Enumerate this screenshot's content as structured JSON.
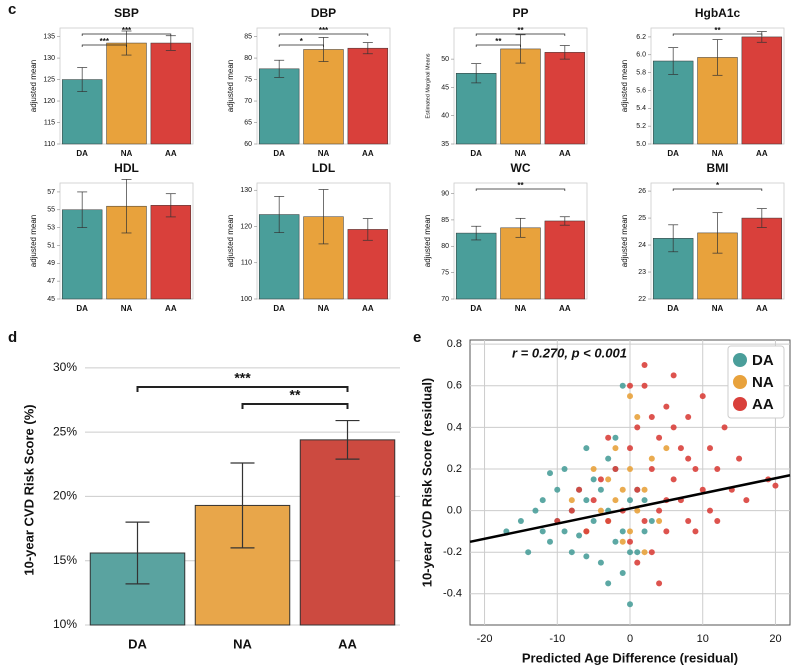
{
  "chart_data": [
    {
      "type": "bar",
      "panel": "c",
      "title": "SBP",
      "y_label": "adjusted mean",
      "categories": [
        "DA",
        "NA",
        "AA"
      ],
      "values": [
        125,
        133.5,
        133.5
      ],
      "errors": [
        2.8,
        2.8,
        1.7
      ],
      "colors": [
        "#4a9e9a",
        "#e8a23c",
        "#d9403b"
      ],
      "ylim": [
        110,
        137
      ],
      "yticks": [
        110,
        115,
        120,
        125,
        130,
        135
      ],
      "grid": false,
      "comparisons": [
        {
          "between": [
            "DA",
            "AA"
          ],
          "label": "***"
        },
        {
          "between": [
            "DA",
            "NA"
          ],
          "label": "***"
        }
      ]
    },
    {
      "type": "bar",
      "title": "DBP",
      "y_label": "adjusted mean",
      "categories": [
        "DA",
        "NA",
        "AA"
      ],
      "values": [
        77.5,
        82,
        82.3
      ],
      "errors": [
        2,
        2.8,
        1.3
      ],
      "colors": [
        "#4a9e9a",
        "#e8a23c",
        "#d9403b"
      ],
      "ylim": [
        60,
        87
      ],
      "yticks": [
        60,
        65,
        70,
        75,
        80,
        85
      ],
      "grid": false,
      "comparisons": [
        {
          "between": [
            "DA",
            "AA"
          ],
          "label": "***"
        },
        {
          "between": [
            "DA",
            "NA"
          ],
          "label": "*"
        }
      ]
    },
    {
      "type": "bar",
      "title": "PP",
      "y_label": "Estimated Marginal Means",
      "categories": [
        "DA",
        "NA",
        "AA"
      ],
      "values": [
        47.5,
        51.8,
        51.2
      ],
      "errors": [
        1.7,
        2.5,
        1.2
      ],
      "colors": [
        "#4a9e9a",
        "#e8a23c",
        "#d9403b"
      ],
      "ylim": [
        35,
        55.5
      ],
      "yticks": [
        35,
        40,
        45,
        50
      ],
      "grid": false,
      "comparisons": [
        {
          "between": [
            "DA",
            "AA"
          ],
          "label": "**"
        },
        {
          "between": [
            "DA",
            "NA"
          ],
          "label": "**"
        }
      ]
    },
    {
      "type": "bar",
      "title": "HgbA1c",
      "y_label": "adjusted mean",
      "categories": [
        "DA",
        "NA",
        "AA"
      ],
      "values": [
        5.93,
        5.97,
        6.2
      ],
      "errors": [
        0.15,
        0.2,
        0.06
      ],
      "colors": [
        "#4a9e9a",
        "#e8a23c",
        "#d9403b"
      ],
      "ylim": [
        5,
        6.3
      ],
      "yticks": [
        {
          "value": 5,
          "label": "5.0"
        },
        5.2,
        5.4,
        5.6,
        5.8,
        {
          "value": 6,
          "label": "6.0"
        },
        6.2
      ],
      "grid": false,
      "comparisons": [
        {
          "between": [
            "DA",
            "AA"
          ],
          "label": "**"
        }
      ]
    },
    {
      "type": "bar",
      "title": "HDL",
      "y_label": "adjusted mean",
      "categories": [
        "DA",
        "NA",
        "AA"
      ],
      "values": [
        55,
        55.4,
        55.5
      ],
      "errors": [
        2,
        3,
        1.3
      ],
      "colors": [
        "#4a9e9a",
        "#e8a23c",
        "#d9403b"
      ],
      "ylim": [
        45,
        58
      ],
      "yticks": [
        45,
        47,
        49,
        51,
        53,
        55,
        57
      ],
      "grid": false,
      "comparisons": []
    },
    {
      "type": "bar",
      "title": "LDL",
      "y_label": "adjusted mean",
      "categories": [
        "DA",
        "NA",
        "AA"
      ],
      "values": [
        123.3,
        122.7,
        119.2
      ],
      "errors": [
        5,
        7.5,
        3
      ],
      "colors": [
        "#4a9e9a",
        "#e8a23c",
        "#d9403b"
      ],
      "ylim": [
        100,
        132
      ],
      "yticks": [
        100,
        110,
        120,
        130
      ],
      "grid": false,
      "comparisons": []
    },
    {
      "type": "bar",
      "title": "WC",
      "y_label": "adjusted mean",
      "categories": [
        "DA",
        "NA",
        "AA"
      ],
      "values": [
        82.5,
        83.5,
        84.8
      ],
      "errors": [
        1.3,
        1.8,
        0.8
      ],
      "colors": [
        "#4a9e9a",
        "#e8a23c",
        "#d9403b"
      ],
      "ylim": [
        70,
        92
      ],
      "yticks": [
        70,
        75,
        80,
        85,
        90
      ],
      "grid": false,
      "comparisons": [
        {
          "between": [
            "DA",
            "AA"
          ],
          "label": "**"
        }
      ]
    },
    {
      "type": "bar",
      "title": "BMI",
      "y_label": "adjusted mean",
      "categories": [
        "DA",
        "NA",
        "AA"
      ],
      "values": [
        24.25,
        24.45,
        25
      ],
      "errors": [
        0.5,
        0.75,
        0.35
      ],
      "colors": [
        "#4a9e9a",
        "#e8a23c",
        "#d9403b"
      ],
      "ylim": [
        22,
        26.3
      ],
      "yticks": [
        22,
        23,
        24,
        25,
        26
      ],
      "grid": false,
      "comparisons": [
        {
          "between": [
            "DA",
            "AA"
          ],
          "label": "*"
        }
      ]
    },
    {
      "type": "bar",
      "panel": "d",
      "y_label": "10-year CVD Risk Score (%)",
      "categories": [
        "DA",
        "NA",
        "AA"
      ],
      "values": [
        15.6,
        19.3,
        24.4
      ],
      "errors": [
        2.4,
        3.3,
        1.5
      ],
      "colors": [
        "#5aa3a0",
        "#e8a64a",
        "#cc4a40"
      ],
      "ylim": [
        10,
        31
      ],
      "yticks": [
        {
          "value": 10,
          "label": "10%"
        },
        {
          "value": 15,
          "label": "15%"
        },
        {
          "value": 20,
          "label": "20%"
        },
        {
          "value": 25,
          "label": "25%"
        },
        {
          "value": 30,
          "label": "30%"
        }
      ],
      "grid": true,
      "comparisons": [
        {
          "between": [
            "DA",
            "AA"
          ],
          "label": "***"
        },
        {
          "between": [
            "NA",
            "AA"
          ],
          "label": "**"
        }
      ]
    },
    {
      "type": "scatter",
      "panel": "e",
      "annotation": "r = 0.270, p < 0.001",
      "x_label": "Predicted Age Difference (residual)",
      "y_label": "10-year CVD Risk Score (residual)",
      "xlim": [
        -22,
        22
      ],
      "ylim": [
        -0.55,
        0.82
      ],
      "xticks": [
        -20,
        -10,
        0,
        10,
        20
      ],
      "yticks": [
        -0.4,
        -0.2,
        {
          "value": 0,
          "label": "0.0"
        },
        0.2,
        0.4,
        0.6,
        0.8
      ],
      "grid": true,
      "legend": "top-right",
      "series": [
        {
          "name": "DA",
          "color": "#4a9e9a",
          "x": [
            -17,
            -15,
            -14,
            -13,
            -12,
            -12,
            -11,
            -10,
            -10,
            -9,
            -9,
            -8,
            -8,
            -7,
            -7,
            -6,
            -6,
            -5,
            -5,
            -4,
            -4,
            -3,
            -3,
            -2,
            -2,
            -1,
            -1,
            0,
            0,
            1,
            1,
            2,
            2,
            3,
            -3,
            -1,
            0,
            -11,
            -6,
            -2
          ],
          "values": [
            -0.1,
            -0.05,
            -0.2,
            0.0,
            -0.1,
            0.05,
            -0.15,
            -0.05,
            0.1,
            -0.1,
            0.2,
            0.0,
            -0.2,
            0.1,
            -0.12,
            0.05,
            0.3,
            -0.05,
            0.15,
            -0.25,
            0.1,
            0.0,
            0.25,
            -0.15,
            0.35,
            -0.1,
            0.6,
            -0.45,
            0.05,
            -0.2,
            0.1,
            -0.1,
            0.05,
            -0.05,
            -0.35,
            -0.3,
            -0.2,
            0.18,
            -0.22,
            0.2
          ]
        },
        {
          "name": "NA",
          "color": "#e8a23c",
          "x": [
            -8,
            -6,
            -5,
            -4,
            -3,
            -3,
            -2,
            -1,
            -1,
            0,
            0,
            1,
            1,
            2,
            2,
            3,
            4,
            -2,
            0,
            5
          ],
          "values": [
            0.05,
            -0.1,
            0.2,
            0.0,
            0.15,
            -0.05,
            0.3,
            0.1,
            -0.15,
            0.2,
            -0.1,
            0.45,
            0.0,
            -0.2,
            0.1,
            0.25,
            -0.05,
            0.05,
            0.55,
            0.3
          ]
        },
        {
          "name": "AA",
          "color": "#d9403b",
          "x": [
            -10,
            -8,
            -7,
            -6,
            -5,
            -4,
            -3,
            -2,
            -1,
            0,
            0,
            1,
            1,
            2,
            2,
            3,
            3,
            4,
            4,
            5,
            5,
            6,
            6,
            7,
            7,
            8,
            8,
            9,
            9,
            10,
            10,
            11,
            11,
            12,
            12,
            13,
            14,
            15,
            16,
            19,
            20,
            2,
            4,
            6,
            8,
            1,
            3,
            5,
            0,
            -3
          ],
          "values": [
            -0.05,
            0.0,
            0.1,
            -0.1,
            0.05,
            0.15,
            -0.05,
            0.2,
            0.0,
            0.3,
            -0.15,
            0.1,
            0.4,
            -0.05,
            0.6,
            0.2,
            -0.2,
            0.35,
            0.0,
            0.5,
            -0.1,
            0.15,
            0.65,
            0.05,
            0.3,
            -0.05,
            0.45,
            0.2,
            -0.1,
            0.55,
            0.1,
            0.3,
            0.0,
            0.2,
            -0.05,
            0.4,
            0.1,
            0.25,
            0.05,
            0.15,
            0.12,
            0.7,
            -0.35,
            0.4,
            0.25,
            -0.25,
            0.45,
            0.05,
            0.6,
            0.35
          ]
        }
      ],
      "trend": {
        "x": [
          -22,
          22
        ],
        "values": [
          -0.15,
          0.17
        ]
      }
    }
  ]
}
